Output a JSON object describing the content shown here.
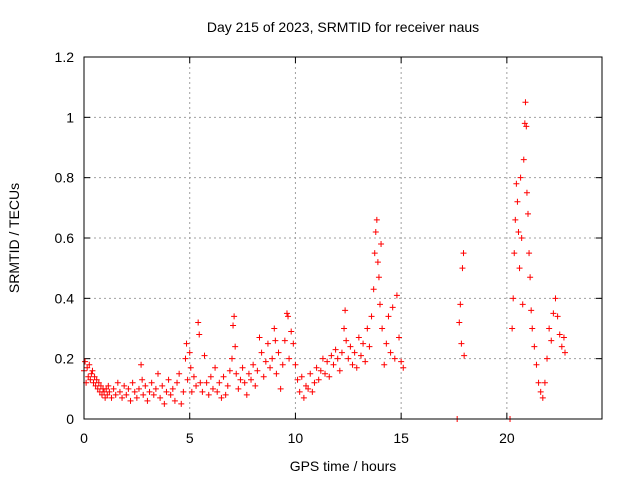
{
  "chart_data": {
    "type": "scatter",
    "title": "Day 215 of 2023, SRMTID for receiver naus",
    "xlabel": "GPS time / hours",
    "ylabel": "SRMTID / TECUs",
    "xlim": [
      0,
      24.5
    ],
    "ylim": [
      0,
      1.2
    ],
    "xticks": [
      0,
      5,
      10,
      15,
      20
    ],
    "xtick_labels": [
      "0",
      "5",
      "10",
      "15",
      "20"
    ],
    "yticks": [
      0,
      0.2,
      0.4,
      0.6,
      0.8,
      1.0,
      1.2
    ],
    "ytick_labels": [
      "0",
      "0.2",
      "0.4",
      "0.6",
      "0.8",
      "1",
      "1.2"
    ],
    "grid": true,
    "marker": "+",
    "series": [
      {
        "name": "SRMTID",
        "color": "#ff0000",
        "points": [
          [
            0.0,
            0.16
          ],
          [
            0.05,
            0.19
          ],
          [
            0.1,
            0.12
          ],
          [
            0.15,
            0.17
          ],
          [
            0.2,
            0.14
          ],
          [
            0.25,
            0.18
          ],
          [
            0.3,
            0.13
          ],
          [
            0.35,
            0.15
          ],
          [
            0.4,
            0.16
          ],
          [
            0.45,
            0.12
          ],
          [
            0.5,
            0.14
          ],
          [
            0.55,
            0.11
          ],
          [
            0.6,
            0.13
          ],
          [
            0.65,
            0.1
          ],
          [
            0.7,
            0.12
          ],
          [
            0.75,
            0.09
          ],
          [
            0.8,
            0.11
          ],
          [
            0.85,
            0.08
          ],
          [
            0.9,
            0.1
          ],
          [
            0.95,
            0.09
          ],
          [
            1.0,
            0.07
          ],
          [
            1.05,
            0.1
          ],
          [
            1.1,
            0.08
          ],
          [
            1.15,
            0.11
          ],
          [
            1.2,
            0.09
          ],
          [
            1.3,
            0.07
          ],
          [
            1.4,
            0.1
          ],
          [
            1.5,
            0.08
          ],
          [
            1.6,
            0.12
          ],
          [
            1.7,
            0.09
          ],
          [
            1.8,
            0.07
          ],
          [
            1.9,
            0.11
          ],
          [
            2.0,
            0.08
          ],
          [
            2.1,
            0.1
          ],
          [
            2.2,
            0.06
          ],
          [
            2.3,
            0.12
          ],
          [
            2.4,
            0.09
          ],
          [
            2.5,
            0.07
          ],
          [
            2.6,
            0.1
          ],
          [
            2.7,
            0.18
          ],
          [
            2.75,
            0.13
          ],
          [
            2.8,
            0.08
          ],
          [
            2.9,
            0.11
          ],
          [
            3.0,
            0.06
          ],
          [
            3.1,
            0.09
          ],
          [
            3.2,
            0.12
          ],
          [
            3.3,
            0.08
          ],
          [
            3.4,
            0.1
          ],
          [
            3.5,
            0.15
          ],
          [
            3.6,
            0.07
          ],
          [
            3.7,
            0.11
          ],
          [
            3.8,
            0.05
          ],
          [
            3.9,
            0.09
          ],
          [
            4.0,
            0.13
          ],
          [
            4.1,
            0.08
          ],
          [
            4.2,
            0.1
          ],
          [
            4.3,
            0.06
          ],
          [
            4.4,
            0.12
          ],
          [
            4.5,
            0.15
          ],
          [
            4.6,
            0.05
          ],
          [
            4.7,
            0.09
          ],
          [
            4.8,
            0.2
          ],
          [
            4.85,
            0.25
          ],
          [
            4.9,
            0.13
          ],
          [
            5.0,
            0.22
          ],
          [
            5.05,
            0.17
          ],
          [
            5.1,
            0.09
          ],
          [
            5.2,
            0.14
          ],
          [
            5.3,
            0.11
          ],
          [
            5.4,
            0.32
          ],
          [
            5.45,
            0.28
          ],
          [
            5.5,
            0.12
          ],
          [
            5.6,
            0.09
          ],
          [
            5.7,
            0.21
          ],
          [
            5.8,
            0.12
          ],
          [
            5.9,
            0.08
          ],
          [
            6.0,
            0.14
          ],
          [
            6.1,
            0.1
          ],
          [
            6.2,
            0.17
          ],
          [
            6.3,
            0.09
          ],
          [
            6.4,
            0.12
          ],
          [
            6.5,
            0.07
          ],
          [
            6.6,
            0.14
          ],
          [
            6.7,
            0.08
          ],
          [
            6.8,
            0.11
          ],
          [
            6.9,
            0.16
          ],
          [
            7.0,
            0.2
          ],
          [
            7.05,
            0.31
          ],
          [
            7.1,
            0.34
          ],
          [
            7.15,
            0.24
          ],
          [
            7.2,
            0.15
          ],
          [
            7.3,
            0.1
          ],
          [
            7.4,
            0.13
          ],
          [
            7.5,
            0.17
          ],
          [
            7.6,
            0.12
          ],
          [
            7.7,
            0.08
          ],
          [
            7.8,
            0.15
          ],
          [
            7.9,
            0.13
          ],
          [
            8.0,
            0.18
          ],
          [
            8.1,
            0.11
          ],
          [
            8.2,
            0.16
          ],
          [
            8.3,
            0.27
          ],
          [
            8.4,
            0.22
          ],
          [
            8.5,
            0.14
          ],
          [
            8.6,
            0.19
          ],
          [
            8.7,
            0.25
          ],
          [
            8.8,
            0.17
          ],
          [
            8.9,
            0.2
          ],
          [
            9.0,
            0.3
          ],
          [
            9.05,
            0.26
          ],
          [
            9.1,
            0.15
          ],
          [
            9.2,
            0.22
          ],
          [
            9.3,
            0.1
          ],
          [
            9.4,
            0.18
          ],
          [
            9.5,
            0.26
          ],
          [
            9.6,
            0.35
          ],
          [
            9.65,
            0.34
          ],
          [
            9.7,
            0.2
          ],
          [
            9.8,
            0.29
          ],
          [
            9.9,
            0.25
          ],
          [
            10.0,
            0.18
          ],
          [
            10.1,
            0.13
          ],
          [
            10.2,
            0.09
          ],
          [
            10.3,
            0.14
          ],
          [
            10.4,
            0.07
          ],
          [
            10.5,
            0.11
          ],
          [
            10.6,
            0.1
          ],
          [
            10.7,
            0.15
          ],
          [
            10.8,
            0.09
          ],
          [
            10.9,
            0.12
          ],
          [
            11.0,
            0.17
          ],
          [
            11.1,
            0.13
          ],
          [
            11.2,
            0.16
          ],
          [
            11.3,
            0.2
          ],
          [
            11.4,
            0.15
          ],
          [
            11.5,
            0.19
          ],
          [
            11.6,
            0.14
          ],
          [
            11.7,
            0.21
          ],
          [
            11.8,
            0.18
          ],
          [
            11.9,
            0.23
          ],
          [
            12.0,
            0.2
          ],
          [
            12.1,
            0.16
          ],
          [
            12.2,
            0.22
          ],
          [
            12.3,
            0.3
          ],
          [
            12.35,
            0.36
          ],
          [
            12.4,
            0.26
          ],
          [
            12.5,
            0.2
          ],
          [
            12.6,
            0.24
          ],
          [
            12.7,
            0.18
          ],
          [
            12.8,
            0.22
          ],
          [
            12.9,
            0.17
          ],
          [
            13.0,
            0.27
          ],
          [
            13.1,
            0.21
          ],
          [
            13.2,
            0.25
          ],
          [
            13.3,
            0.19
          ],
          [
            13.4,
            0.3
          ],
          [
            13.5,
            0.24
          ],
          [
            13.6,
            0.34
          ],
          [
            13.7,
            0.43
          ],
          [
            13.75,
            0.55
          ],
          [
            13.8,
            0.62
          ],
          [
            13.85,
            0.66
          ],
          [
            13.9,
            0.52
          ],
          [
            13.95,
            0.47
          ],
          [
            14.0,
            0.38
          ],
          [
            14.05,
            0.58
          ],
          [
            14.1,
            0.3
          ],
          [
            14.2,
            0.18
          ],
          [
            14.3,
            0.25
          ],
          [
            14.4,
            0.34
          ],
          [
            14.5,
            0.22
          ],
          [
            14.6,
            0.37
          ],
          [
            14.7,
            0.2
          ],
          [
            14.8,
            0.41
          ],
          [
            14.9,
            0.27
          ],
          [
            15.0,
            0.19
          ],
          [
            15.1,
            0.17
          ],
          [
            17.65,
            0.0
          ],
          [
            17.75,
            0.32
          ],
          [
            17.8,
            0.38
          ],
          [
            17.85,
            0.25
          ],
          [
            17.9,
            0.5
          ],
          [
            17.95,
            0.55
          ],
          [
            17.98,
            0.21
          ],
          [
            20.15,
            0.0
          ],
          [
            20.25,
            0.3
          ],
          [
            20.3,
            0.4
          ],
          [
            20.35,
            0.55
          ],
          [
            20.4,
            0.66
          ],
          [
            20.45,
            0.78
          ],
          [
            20.5,
            0.72
          ],
          [
            20.55,
            0.62
          ],
          [
            20.6,
            0.5
          ],
          [
            20.65,
            0.8
          ],
          [
            20.7,
            0.6
          ],
          [
            20.75,
            0.38
          ],
          [
            20.8,
            0.86
          ],
          [
            20.85,
            0.98
          ],
          [
            20.88,
            1.05
          ],
          [
            20.92,
            0.97
          ],
          [
            20.95,
            0.75
          ],
          [
            21.0,
            0.68
          ],
          [
            21.05,
            0.55
          ],
          [
            21.1,
            0.47
          ],
          [
            21.15,
            0.36
          ],
          [
            21.2,
            0.3
          ],
          [
            21.3,
            0.24
          ],
          [
            21.4,
            0.18
          ],
          [
            21.5,
            0.12
          ],
          [
            21.6,
            0.09
          ],
          [
            21.7,
            0.07
          ],
          [
            21.8,
            0.12
          ],
          [
            21.9,
            0.2
          ],
          [
            22.0,
            0.3
          ],
          [
            22.1,
            0.26
          ],
          [
            22.2,
            0.35
          ],
          [
            22.3,
            0.4
          ],
          [
            22.4,
            0.34
          ],
          [
            22.5,
            0.28
          ],
          [
            22.6,
            0.24
          ],
          [
            22.7,
            0.27
          ],
          [
            22.75,
            0.22
          ]
        ]
      }
    ]
  }
}
